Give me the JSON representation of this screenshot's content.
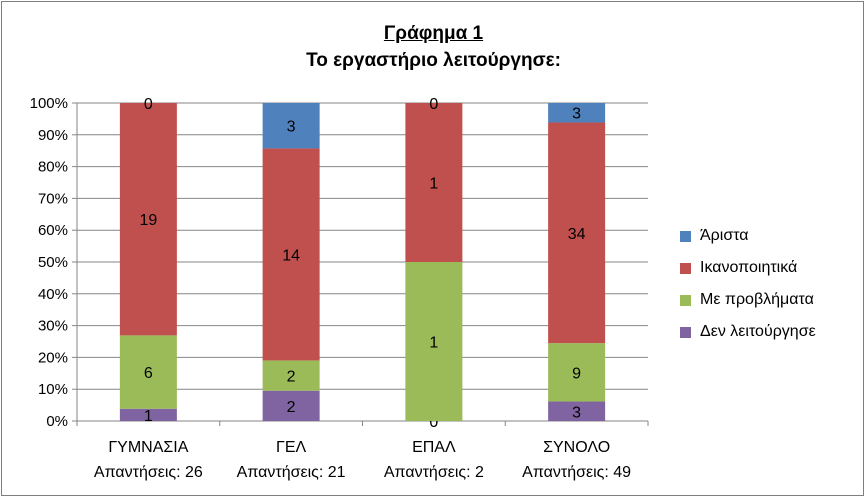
{
  "chart_data": {
    "type": "bar",
    "stacked": "percent",
    "title": "Γράφημα 1",
    "subtitle": "Το εργαστήριο λειτούργησε:",
    "categories": [
      "ΓΥΜΝΑΣΙΑ",
      "ΓΕΛ",
      "ΕΠΑΛ",
      "ΣΥΝΟΛΟ"
    ],
    "category_sublabels": [
      "Απαντήσεις: 26",
      "Απαντήσεις: 21",
      "Απαντήσεις: 2",
      "Απαντήσεις: 49"
    ],
    "series": [
      {
        "name": "Δεν λειτούργησε",
        "values": [
          1,
          2,
          0,
          3
        ],
        "color": "#8064a2"
      },
      {
        "name": "Με προβλήματα",
        "values": [
          6,
          2,
          1,
          9
        ],
        "color": "#9bbb59"
      },
      {
        "name": "Ικανοποιητικά",
        "values": [
          19,
          14,
          1,
          34
        ],
        "color": "#c0504d"
      },
      {
        "name": "Άριστα",
        "values": [
          0,
          3,
          0,
          3
        ],
        "color": "#4f81bd"
      }
    ],
    "ylim": [
      0,
      100
    ],
    "yticks": [
      "0%",
      "10%",
      "20%",
      "30%",
      "40%",
      "50%",
      "60%",
      "70%",
      "80%",
      "90%",
      "100%"
    ],
    "grid": true,
    "legend_position": "right",
    "legend_order": [
      "Άριστα",
      "Ικανοποιητικά",
      "Με προβλήματα",
      "Δεν λειτούργησε"
    ]
  }
}
